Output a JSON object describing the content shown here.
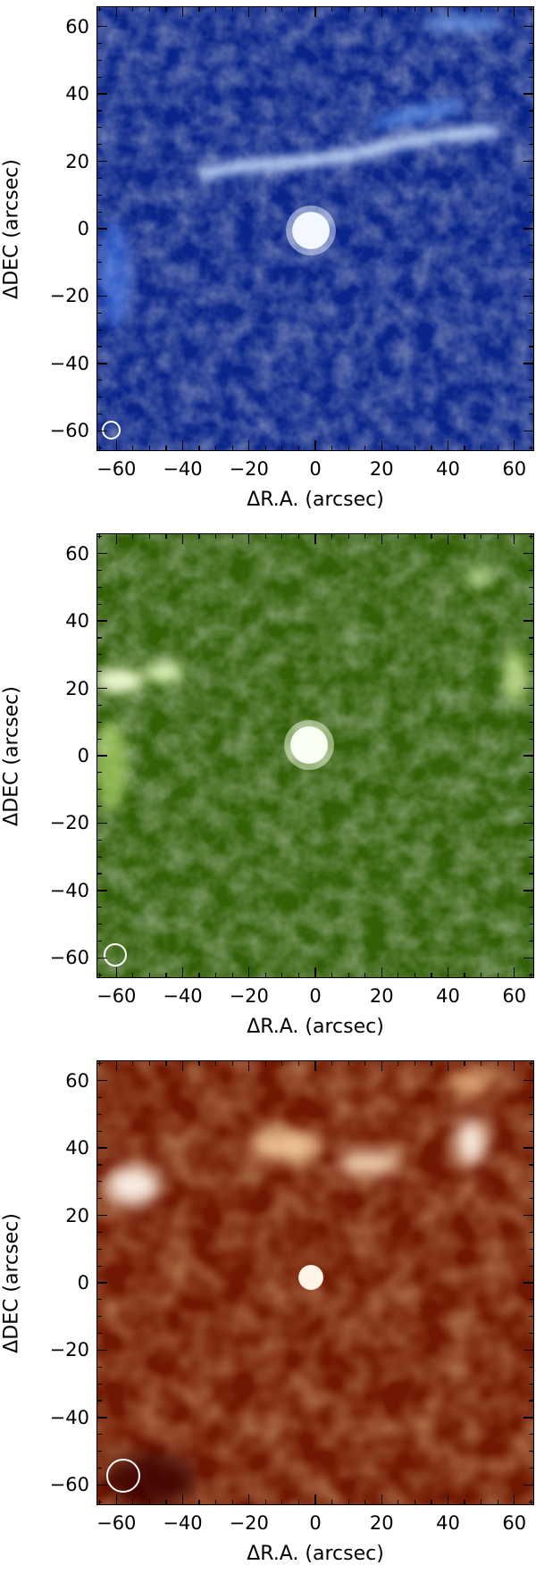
{
  "panels": [
    {
      "id": "blue",
      "colors": {
        "dark": "#06155a",
        "mid": "#1f55d6",
        "light": "#8fc0ff",
        "white": "#f4f9ff"
      },
      "xlabel": "ΔR.A. (arcsec)",
      "ylabel": "ΔDEC (arcsec)",
      "xticks": [
        "−60",
        "−40",
        "−20",
        "0",
        "20",
        "40",
        "60"
      ],
      "yticks": [
        "60",
        "40",
        "20",
        "0",
        "−20",
        "−40",
        "−60"
      ],
      "beam": "beam-circle"
    },
    {
      "id": "green",
      "colors": {
        "dark": "#1c3806",
        "mid": "#5f9a0c",
        "light": "#b7e26a",
        "white": "#fbfff2"
      },
      "xlabel": "ΔR.A. (arcsec)",
      "ylabel": "ΔDEC (arcsec)",
      "xticks": [
        "−60",
        "−40",
        "−20",
        "0",
        "20",
        "40",
        "60"
      ],
      "yticks": [
        "60",
        "40",
        "20",
        "0",
        "−20",
        "−40",
        "−60"
      ],
      "beam": "beam-circle"
    },
    {
      "id": "orange",
      "colors": {
        "dark": "#4a0a00",
        "mid": "#c0410a",
        "light": "#ffa24a",
        "white": "#fff6ea"
      },
      "xlabel": "ΔR.A. (arcsec)",
      "ylabel": "ΔDEC (arcsec)",
      "xticks": [
        "−60",
        "−40",
        "−20",
        "0",
        "20",
        "40",
        "60"
      ],
      "yticks": [
        "60",
        "40",
        "20",
        "0",
        "−20",
        "−40",
        "−60"
      ],
      "beam": "beam-circle"
    }
  ]
}
